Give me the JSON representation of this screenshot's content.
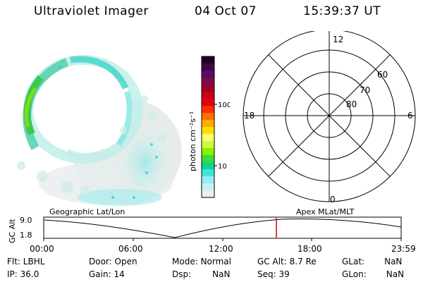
{
  "header": {
    "instrument": "Ultraviolet Imager",
    "date": "04 Oct 07",
    "time": "15:39:37 UT"
  },
  "colorbar": {
    "unit_label": "photon cm⁻²s⁻¹",
    "ticks": [
      "100",
      "10"
    ],
    "colors": [
      "#200020",
      "#3a0a46",
      "#5a0a6a",
      "#7a0a50",
      "#a0002a",
      "#c80018",
      "#e8000a",
      "#ff2a00",
      "#ff6e00",
      "#ffae00",
      "#ffe000",
      "#ffff70",
      "#c8ff3c",
      "#8cf000",
      "#3cdc3c",
      "#12d28c",
      "#3ce6d2",
      "#8cf0f0",
      "#c8f0f0",
      "#e6f0f0"
    ]
  },
  "polar_grid": {
    "mlt_labels": [
      "12",
      "18",
      "6",
      "0"
    ],
    "lat_labels": [
      "60",
      "70",
      "80"
    ]
  },
  "timeline": {
    "y_axis_title": "GC Alt",
    "y_ticks": [
      "9.0",
      "1.8"
    ],
    "left_label": "Geographic Lat/Lon",
    "right_label": "Apex MLat/MLT",
    "x_ticks": [
      "00:00",
      "06:00",
      "12:00",
      "18:00",
      "23:59"
    ],
    "marker_color": "#e00000"
  },
  "status": {
    "row1": [
      {
        "label": "Flt: LBHL",
        "value": ""
      },
      {
        "label": "Door:",
        "value": "Open"
      },
      {
        "label": "Mode:",
        "value": "Normal"
      },
      {
        "label": "GC Alt:",
        "value": "8.7 Re"
      },
      {
        "label": "GLat:",
        "value": "NaN"
      }
    ],
    "row2": [
      {
        "label": "IP:",
        "value": "36.0"
      },
      {
        "label": "Gain:",
        "value": "14"
      },
      {
        "label": "Dsp:",
        "value": "NaN"
      },
      {
        "label": "Seq:",
        "value": "39"
      },
      {
        "label": "GLon:",
        "value": "NaN"
      }
    ]
  }
}
